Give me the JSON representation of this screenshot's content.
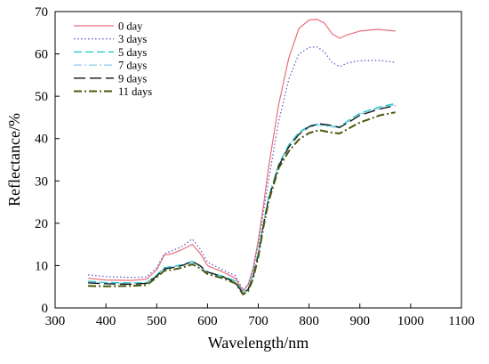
{
  "chart_data": {
    "type": "line",
    "xlabel": "Wavelength/nm",
    "ylabel": "Reflectance/%",
    "xlim": [
      300,
      1100
    ],
    "ylim": [
      0,
      70
    ],
    "xticks": [
      300,
      400,
      500,
      600,
      700,
      800,
      900,
      1000,
      1100
    ],
    "yticks": [
      0,
      10,
      20,
      30,
      40,
      50,
      60,
      70
    ],
    "grid": false,
    "legend": "top-left",
    "series": [
      {
        "name": "0 day",
        "color": "#e8707a",
        "dash": "solid",
        "x": [
          365,
          400,
          450,
          480,
          500,
          515,
          530,
          550,
          570,
          585,
          600,
          630,
          655,
          670,
          680,
          690,
          700,
          710,
          720,
          740,
          760,
          780,
          800,
          815,
          830,
          845,
          860,
          875,
          900,
          935,
          970
        ],
        "y": [
          7.0,
          6.6,
          6.5,
          6.8,
          9.0,
          12.5,
          12.8,
          13.8,
          15.0,
          13.0,
          10.0,
          8.5,
          7.0,
          4.0,
          5.5,
          9.5,
          16.0,
          24.0,
          33.0,
          48.0,
          59.0,
          66.0,
          68.0,
          68.2,
          67.3,
          64.8,
          63.7,
          64.5,
          65.4,
          65.8,
          65.4
        ]
      },
      {
        "name": "3 days",
        "color": "#6a5acd",
        "dash": "dot",
        "x": [
          365,
          400,
          450,
          480,
          500,
          515,
          530,
          550,
          570,
          585,
          600,
          630,
          655,
          670,
          680,
          690,
          700,
          710,
          720,
          740,
          760,
          780,
          800,
          815,
          830,
          845,
          860,
          875,
          900,
          935,
          970
        ],
        "y": [
          7.8,
          7.4,
          7.2,
          7.3,
          9.5,
          12.8,
          13.5,
          14.5,
          16.3,
          14.0,
          10.8,
          9.0,
          7.6,
          4.2,
          5.5,
          9.0,
          15.0,
          22.5,
          30.0,
          44.0,
          54.0,
          60.0,
          61.5,
          61.7,
          60.5,
          58.0,
          57.0,
          57.8,
          58.4,
          58.5,
          58.0
        ]
      },
      {
        "name": "5 days",
        "color": "#19c6c6",
        "dash": "dash",
        "x": [
          365,
          400,
          450,
          480,
          500,
          515,
          530,
          550,
          570,
          585,
          600,
          630,
          655,
          670,
          680,
          690,
          700,
          710,
          720,
          740,
          760,
          780,
          800,
          820,
          840,
          860,
          880,
          900,
          940,
          970
        ],
        "y": [
          6.3,
          6.0,
          5.9,
          6.0,
          7.8,
          9.5,
          9.8,
          10.2,
          11.0,
          10.0,
          8.5,
          7.5,
          6.4,
          3.6,
          4.5,
          8.0,
          13.0,
          20.0,
          26.0,
          34.0,
          38.5,
          41.5,
          43.0,
          43.5,
          43.0,
          42.8,
          44.5,
          46.0,
          47.5,
          48.3
        ]
      },
      {
        "name": "7 days",
        "color": "#87ceeb",
        "dash": "dashdot",
        "x": [
          365,
          400,
          450,
          480,
          500,
          515,
          530,
          550,
          570,
          585,
          600,
          630,
          655,
          670,
          680,
          690,
          700,
          710,
          720,
          740,
          760,
          780,
          800,
          820,
          840,
          860,
          880,
          900,
          940,
          970
        ],
        "y": [
          6.1,
          5.8,
          5.7,
          5.9,
          7.6,
          9.3,
          9.6,
          10.0,
          10.8,
          9.8,
          8.3,
          7.3,
          6.2,
          3.5,
          4.4,
          7.8,
          12.8,
          19.8,
          25.8,
          33.8,
          38.2,
          41.2,
          42.7,
          43.2,
          42.8,
          42.6,
          44.3,
          45.8,
          47.3,
          48.0
        ]
      },
      {
        "name": "9 days",
        "color": "#111111",
        "dash": "longdash",
        "x": [
          365,
          400,
          450,
          480,
          500,
          515,
          530,
          550,
          570,
          585,
          600,
          630,
          655,
          670,
          680,
          690,
          700,
          710,
          720,
          740,
          760,
          780,
          800,
          820,
          840,
          860,
          880,
          900,
          940,
          970
        ],
        "y": [
          5.9,
          5.7,
          5.6,
          5.8,
          7.5,
          9.2,
          9.5,
          10.0,
          11.0,
          10.0,
          8.5,
          7.4,
          6.0,
          3.4,
          4.3,
          7.5,
          12.5,
          19.5,
          25.5,
          33.5,
          38.0,
          41.0,
          42.8,
          43.5,
          43.2,
          42.6,
          44.0,
          45.5,
          47.0,
          47.8
        ]
      },
      {
        "name": "11 days",
        "color": "#4a5a0a",
        "dash": "heavydashdot",
        "x": [
          365,
          400,
          450,
          480,
          500,
          515,
          530,
          550,
          570,
          585,
          600,
          630,
          655,
          670,
          680,
          690,
          700,
          710,
          720,
          740,
          760,
          780,
          800,
          820,
          840,
          860,
          880,
          900,
          940,
          970
        ],
        "y": [
          5.2,
          5.1,
          5.2,
          5.4,
          7.2,
          8.8,
          9.0,
          9.5,
          10.3,
          9.4,
          8.0,
          7.0,
          5.8,
          3.2,
          4.0,
          7.0,
          12.0,
          19.0,
          25.0,
          33.0,
          37.0,
          39.8,
          41.3,
          42.0,
          41.5,
          41.2,
          42.5,
          43.8,
          45.5,
          46.2
        ]
      }
    ]
  }
}
